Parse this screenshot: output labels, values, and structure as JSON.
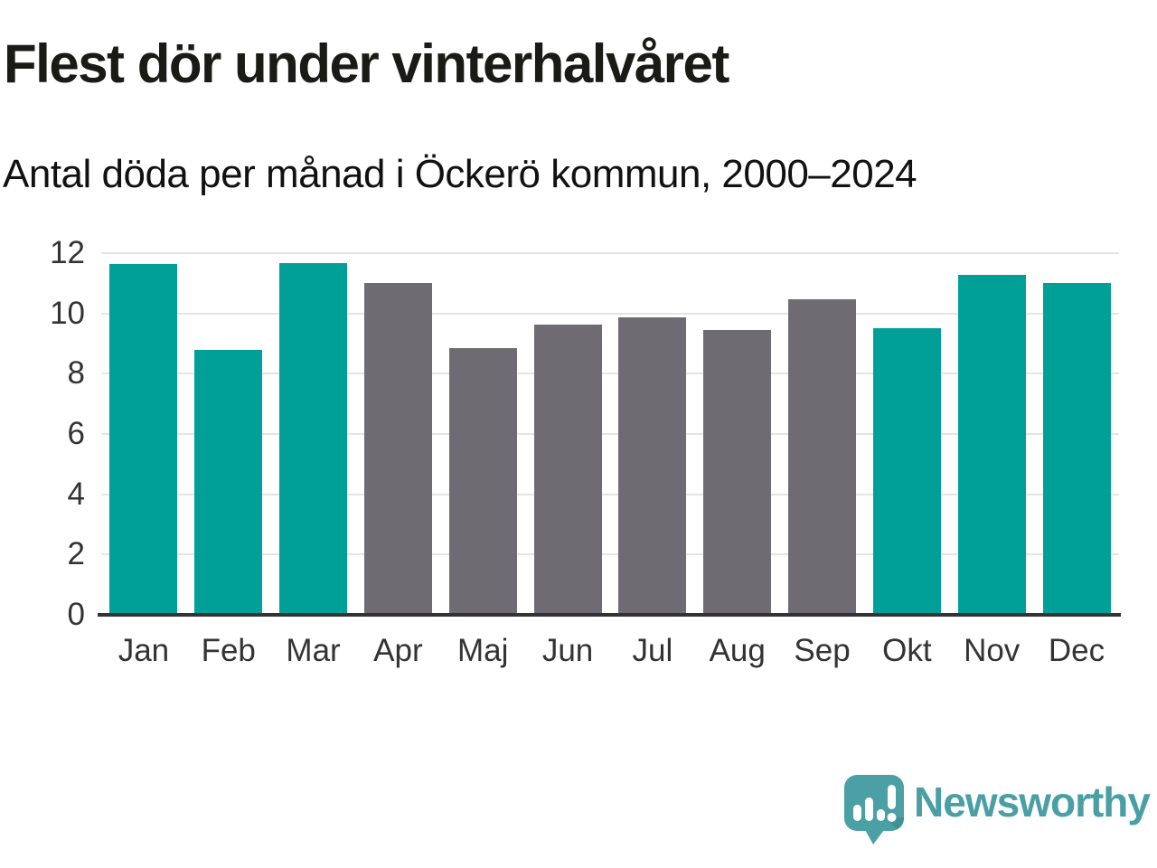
{
  "header": {
    "title": "Flest dör under vinterhalvåret",
    "subtitle": "Antal döda per månad i Öckerö kommun, 2000–2024"
  },
  "chart_data": {
    "type": "bar",
    "title": "Flest dör under vinterhalvåret",
    "subtitle": "Antal döda per månad i Öckerö kommun, 2000–2024",
    "categories": [
      "Jan",
      "Feb",
      "Mar",
      "Apr",
      "Maj",
      "Jun",
      "Jul",
      "Aug",
      "Sep",
      "Okt",
      "Nov",
      "Dec"
    ],
    "values": [
      11.64,
      8.8,
      11.68,
      11.0,
      8.84,
      9.64,
      9.88,
      9.44,
      10.48,
      9.52,
      11.28,
      11.0
    ],
    "bar_colors": [
      "teal",
      "teal",
      "teal",
      "gray",
      "gray",
      "gray",
      "gray",
      "gray",
      "gray",
      "teal",
      "teal",
      "teal"
    ],
    "palette": {
      "teal": "#00a099",
      "gray": "#6e6b73"
    },
    "xlabel": "",
    "ylabel": "",
    "ylim": [
      0,
      12
    ],
    "yticks": [
      0,
      2,
      4,
      6,
      8,
      10,
      12
    ],
    "grid": true,
    "legend": false,
    "gridline_color": "#e4e4e4",
    "axis_color": "#333333"
  },
  "footer": {
    "brand": "Newsworthy",
    "logo_icon": "bar-chart-speech-bubble-icon",
    "brand_color": "#4a9fa4"
  }
}
